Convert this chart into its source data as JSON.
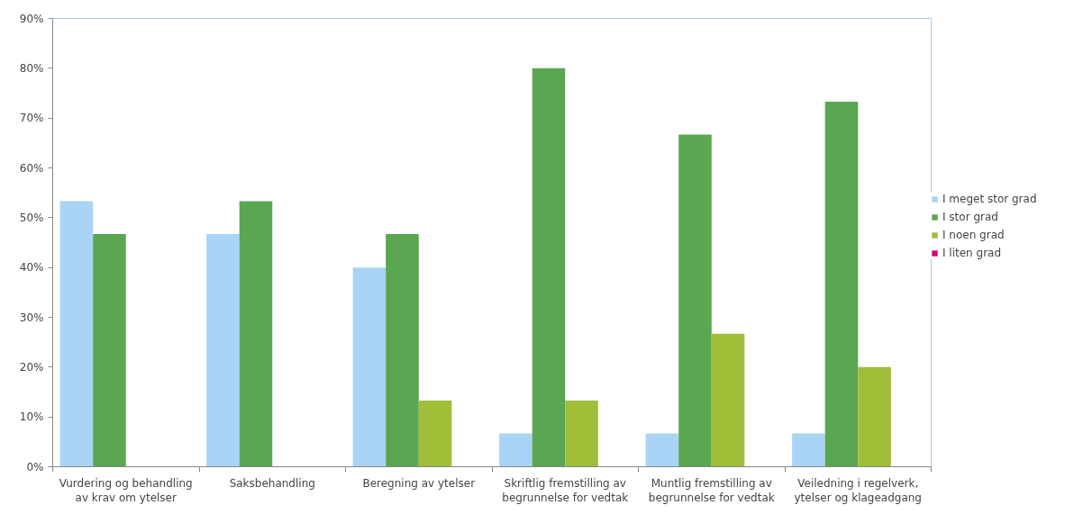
{
  "chart_data": {
    "type": "bar",
    "categories": [
      "Vurdering og behandling av krav om ytelser",
      "Saksbehandling",
      "Beregning av ytelser",
      "Skriftlig fremstilling av begrunnelse for vedtak",
      "Muntlig fremstilling av begrunnelse for vedtak",
      "Veiledning i regelverk, ytelser og klageadgang"
    ],
    "series": [
      {
        "name": "I meget stor grad",
        "color": "#a9d4f5",
        "values": [
          53.3,
          46.7,
          40,
          6.7,
          6.7,
          6.7
        ]
      },
      {
        "name": "I stor grad",
        "color": "#5aa651",
        "values": [
          46.7,
          53.3,
          46.7,
          80,
          66.7,
          73.3
        ]
      },
      {
        "name": "I noen grad",
        "color": "#a0be37",
        "values": [
          0,
          0,
          13.3,
          13.3,
          26.7,
          20
        ]
      },
      {
        "name": "I liten grad",
        "color": "#cc0a7e",
        "values": [
          0,
          0,
          0,
          0,
          0,
          0
        ]
      }
    ],
    "ylim": [
      0,
      90
    ],
    "yticks": [
      {
        "value": 0,
        "label": "0%"
      },
      {
        "value": 10,
        "label": "10%"
      },
      {
        "value": 20,
        "label": "20%"
      },
      {
        "value": 30,
        "label": "30%"
      },
      {
        "value": 40,
        "label": "40%"
      },
      {
        "value": 50,
        "label": "50%"
      },
      {
        "value": 60,
        "label": "60%"
      },
      {
        "value": 70,
        "label": "70%"
      },
      {
        "value": 80,
        "label": "80%"
      },
      {
        "value": 90,
        "label": "90%"
      }
    ],
    "grid": false,
    "legend": "right"
  }
}
